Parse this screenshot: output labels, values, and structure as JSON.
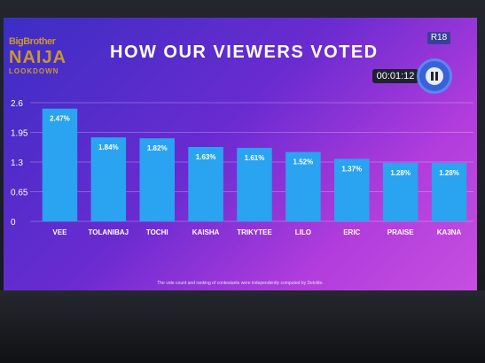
{
  "logo": {
    "line1": "BigBrother",
    "line2": "NAIJA",
    "line3": "LOOKDOWN"
  },
  "title": "HOW OUR VIEWERS VOTED",
  "rating": "R18",
  "timer": "00:01:12",
  "footnote": "The vote count and ranking of contestants were independently computed by Deloitte.",
  "colors": {
    "bar": "#2aa3f0",
    "background_start": "#3b2ec4",
    "background_end": "#c64fe0"
  },
  "chart_data": {
    "type": "bar",
    "title": "HOW OUR VIEWERS VOTED",
    "categories": [
      "VEE",
      "TOLANIBAJ",
      "TOCHI",
      "KAISHA",
      "TRIKYTEE",
      "LILO",
      "ERIC",
      "PRAISE",
      "KA3NA"
    ],
    "values": [
      2.47,
      1.84,
      1.82,
      1.63,
      1.61,
      1.52,
      1.37,
      1.28,
      1.28
    ],
    "data_labels": [
      "2.47%",
      "1.84%",
      "1.82%",
      "1.63%",
      "1.61%",
      "1.52%",
      "1.37%",
      "1.28%",
      "1.28%"
    ],
    "yticks": [
      "0",
      "0.65",
      "1.3",
      "1.95",
      "2.6"
    ],
    "ylim": [
      0,
      2.6
    ],
    "grid": true,
    "legend": false
  }
}
